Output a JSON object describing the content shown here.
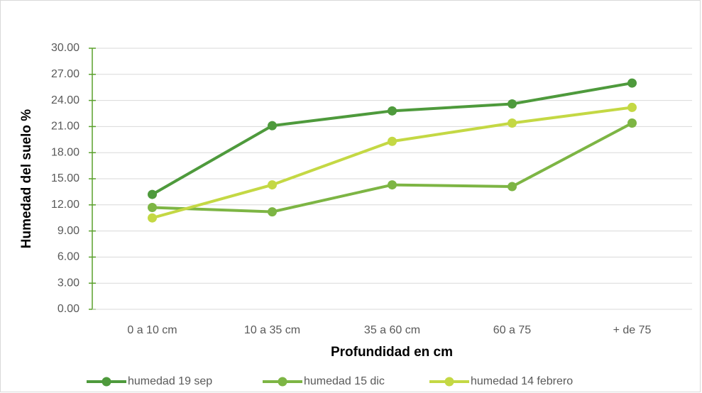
{
  "chart_data": {
    "type": "line",
    "x_label": "Profundidad en cm",
    "y_label": "Humedad del suelo %",
    "categories": [
      "0 a 10 cm",
      "10 a 35 cm",
      "35 a 60 cm",
      "60 a 75",
      "+ de 75"
    ],
    "series": [
      {
        "name": "humedad 19 sep",
        "color": "#4e9a3c",
        "values": [
          13.2,
          21.1,
          22.8,
          23.6,
          26.0
        ]
      },
      {
        "name": "humedad 15 dic",
        "color": "#7db544",
        "values": [
          11.7,
          11.2,
          14.3,
          14.1,
          21.4
        ]
      },
      {
        "name": "humedad 14 febrero",
        "color": "#c4d844",
        "values": [
          10.5,
          14.3,
          19.3,
          21.4,
          23.2
        ]
      }
    ],
    "ylim": [
      0,
      30
    ],
    "yticks": [
      {
        "value": 0,
        "label": "0.00"
      },
      {
        "value": 3,
        "label": "3.00"
      },
      {
        "value": 6,
        "label": "6.00"
      },
      {
        "value": 9,
        "label": "9.00"
      },
      {
        "value": 12,
        "label": "12.00"
      },
      {
        "value": 15,
        "label": "15.00"
      },
      {
        "value": 18,
        "label": "18.00"
      },
      {
        "value": 21,
        "label": "21.00"
      },
      {
        "value": 24,
        "label": "24.00"
      },
      {
        "value": 27,
        "label": "27.00"
      },
      {
        "value": 30,
        "label": "30.00"
      }
    ],
    "grid": true,
    "legend": "bottom"
  }
}
